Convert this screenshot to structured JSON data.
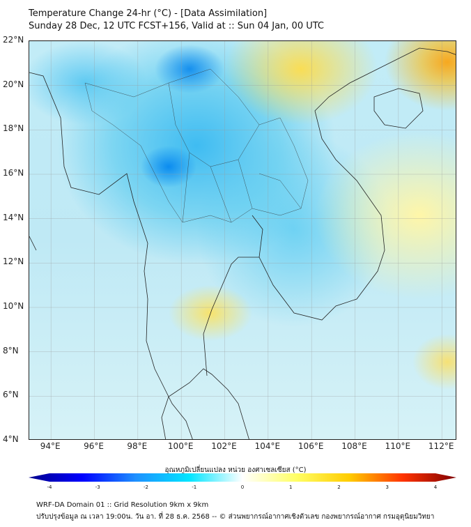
{
  "header": {
    "title": "Temperature Change 24-hr (°C) - [Data Assimilation]",
    "subtitle": "Sunday 28 Dec, 12 UTC FCST+156, Valid at :: Sun 04 Jan, 00 UTC"
  },
  "map": {
    "lat_labels": [
      "22°N",
      "20°N",
      "18°N",
      "16°N",
      "14°N",
      "12°N",
      "10°N",
      "8°N",
      "6°N",
      "4°N"
    ],
    "lon_labels": [
      "94°E",
      "96°E",
      "98°E",
      "100°E",
      "102°E",
      "104°E",
      "106°E",
      "108°E",
      "110°E",
      "112°E"
    ],
    "lat_range": [
      4,
      22
    ],
    "lon_range": [
      93,
      112.7
    ]
  },
  "colorbar": {
    "title": "อุณหภูมิเปลี่ยนแปลง หน่วย องศาเซลเซียส (°C)",
    "ticks": [
      "-4",
      "-3",
      "-2",
      "-1",
      "0",
      "1",
      "2",
      "3",
      "4"
    ],
    "range": [
      -4,
      4
    ],
    "colors": [
      "#00008b",
      "#0000ff",
      "#1e90ff",
      "#00e5ff",
      "#ffffff",
      "#ffff66",
      "#ffcc00",
      "#ff3300",
      "#7f0000"
    ]
  },
  "footer": {
    "line1": "WRF-DA Domain 01 :: Grid Resolution 9km x 9km",
    "line2": "ปรับปรุงข้อมูล ณ เวลา 19:00น. วัน อา. ที่ 28 ธ.ค. 2568 -- © ส่วนพยากรณ์อากาศเชิงตัวเลข กองพยากรณ์อากาศ กรมอุตุนิยมวิทยา"
  }
}
